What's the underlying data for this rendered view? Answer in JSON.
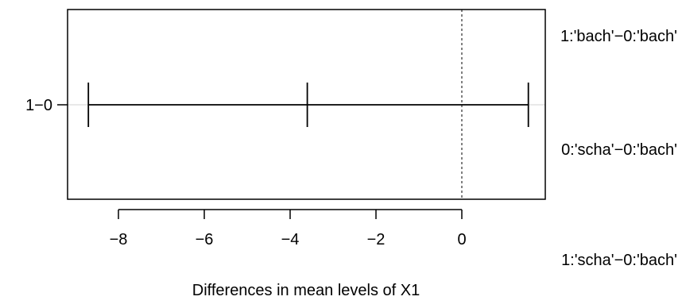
{
  "chart_data": {
    "type": "errorbar",
    "xlabel": "Differences in mean levels of X1",
    "xlim": [
      -9.0,
      1.5
    ],
    "x_ticks": [
      -8,
      -6,
      -4,
      -2,
      0
    ],
    "x_tick_labels": [
      "−8",
      "−6",
      "−4",
      "−2",
      "0"
    ],
    "reference_line": 0,
    "comparisons": [
      {
        "label": "1−0",
        "estimate": -3.6,
        "lower": -8.7,
        "upper": 1.55
      }
    ],
    "side_labels": [
      "1:'bach'−0:'bach'",
      "0:'scha'−0:'bach'",
      "1:'scha'−0:'bach'"
    ]
  }
}
